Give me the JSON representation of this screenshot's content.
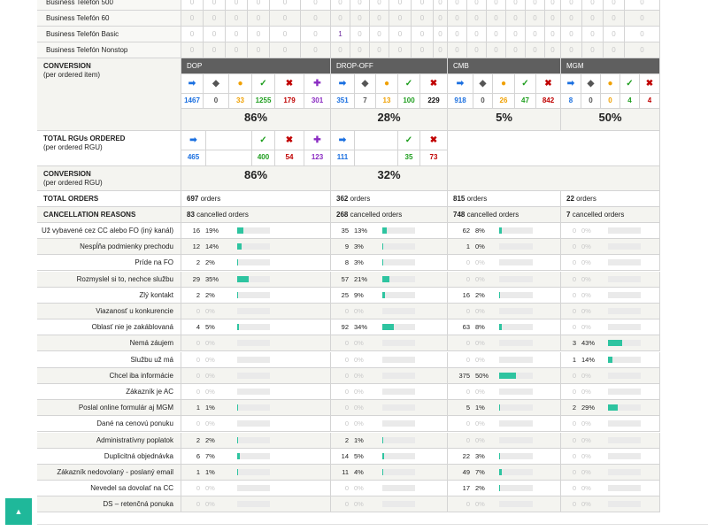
{
  "product_rows": [
    {
      "type": "tel",
      "name": "Business Telefón 500",
      "vals": [
        "0",
        "0",
        "0",
        "0",
        "0",
        "0",
        "0",
        "0",
        "0",
        "0",
        "0",
        "0",
        "0",
        "0",
        "0",
        "0",
        "0",
        "0",
        "0",
        "0",
        "0",
        "0"
      ]
    },
    {
      "type": "tel",
      "name": "Business Telefón 60",
      "vals": [
        "0",
        "0",
        "0",
        "0",
        "0",
        "0",
        "0",
        "0",
        "0",
        "0",
        "0",
        "0",
        "0",
        "0",
        "0",
        "0",
        "0",
        "0",
        "0",
        "0",
        "0",
        "0"
      ]
    },
    {
      "type": "tel",
      "name": "Business Telefón Basic",
      "vals": [
        "0",
        "0",
        "0",
        "0",
        "0",
        "0",
        "1",
        "0",
        "0",
        "0",
        "0",
        "0",
        "0",
        "0",
        "0",
        "0",
        "0",
        "0",
        "0",
        "0",
        "0",
        "0"
      ]
    },
    {
      "type": "tel",
      "name": "Business Telefón Nonstop",
      "vals": [
        "0",
        "0",
        "0",
        "0",
        "0",
        "0",
        "0",
        "0",
        "0",
        "0",
        "0",
        "0",
        "0",
        "0",
        "0",
        "0",
        "0",
        "0",
        "0",
        "0",
        "0",
        "0"
      ]
    }
  ],
  "conversion_item": {
    "label": "CONVERSION",
    "sub": "(per ordered item)",
    "groups": [
      {
        "name": "DOP",
        "icons": [
          "➡",
          "◆",
          "●",
          "✓",
          "✖",
          "✚"
        ],
        "values": [
          "1467",
          "0",
          "33",
          "1255",
          "179",
          "301"
        ],
        "pct": "86%"
      },
      {
        "name": "DROP-OFF",
        "icons": [
          "➡",
          "◆",
          "●",
          "✓",
          "✖"
        ],
        "values": [
          "351",
          "7",
          "13",
          "100",
          "229"
        ],
        "pct": "28%"
      },
      {
        "name": "CMB",
        "icons": [
          "➡",
          "◆",
          "●",
          "✓",
          "✖"
        ],
        "values": [
          "918",
          "0",
          "26",
          "47",
          "842"
        ],
        "pct": "5%"
      },
      {
        "name": "MGM",
        "icons": [
          "➡",
          "◆",
          "●",
          "✓",
          "✖"
        ],
        "values": [
          "8",
          "0",
          "0",
          "4",
          "4"
        ],
        "pct": "50%"
      }
    ]
  },
  "total_rgus": {
    "label": "TOTAL RGUs ORDERED",
    "sub": "(per ordered RGU)",
    "dop": {
      "icons": [
        "➡",
        "",
        "",
        "✓",
        "✖",
        "✚"
      ],
      "values": [
        "465",
        "",
        "",
        "400",
        "54",
        "123"
      ]
    },
    "dropoff": {
      "icons": [
        "➡",
        "",
        "✓",
        "✖"
      ],
      "values": [
        "111",
        "",
        "35",
        "73"
      ]
    }
  },
  "conversion_rgu": {
    "label": "CONVERSION",
    "sub": "(per ordered RGU)",
    "dop_pct": "86%",
    "dropoff_pct": "32%"
  },
  "total_orders": {
    "label": "TOTAL ORDERS",
    "values": [
      {
        "n": "697",
        "t": "orders"
      },
      {
        "n": "362",
        "t": "orders"
      },
      {
        "n": "815",
        "t": "orders"
      },
      {
        "n": "22",
        "t": "orders"
      }
    ]
  },
  "cancellation": {
    "label": "CANCELLATION REASONS",
    "values": [
      {
        "n": "83",
        "t": "cancelled orders"
      },
      {
        "n": "268",
        "t": "cancelled orders"
      },
      {
        "n": "748",
        "t": "cancelled orders"
      },
      {
        "n": "7",
        "t": "cancelled orders"
      }
    ]
  },
  "reasons": [
    {
      "label": "Už vybavené cez CC alebo FO (iný kanál)",
      "g": [
        [
          "16",
          "19%",
          19
        ],
        [
          "35",
          "13%",
          13
        ],
        [
          "62",
          "8%",
          8
        ],
        [
          "0",
          "0%",
          0
        ]
      ]
    },
    {
      "label": "Nespĺňa podmienky prechodu",
      "g": [
        [
          "12",
          "14%",
          14
        ],
        [
          "9",
          "3%",
          3
        ],
        [
          "1",
          "0%",
          0
        ],
        [
          "0",
          "0%",
          0
        ]
      ]
    },
    {
      "label": "Príde na FO",
      "g": [
        [
          "2",
          "2%",
          2
        ],
        [
          "8",
          "3%",
          3
        ],
        [
          "0",
          "0%",
          0
        ],
        [
          "0",
          "0%",
          0
        ]
      ]
    },
    {
      "label": "Rozmyslel si to, nechce službu",
      "g": [
        [
          "29",
          "35%",
          35
        ],
        [
          "57",
          "21%",
          21
        ],
        [
          "0",
          "0%",
          0
        ],
        [
          "0",
          "0%",
          0
        ]
      ]
    },
    {
      "label": "Zlý kontakt",
      "g": [
        [
          "2",
          "2%",
          2
        ],
        [
          "25",
          "9%",
          9
        ],
        [
          "16",
          "2%",
          2
        ],
        [
          "0",
          "0%",
          0
        ]
      ]
    },
    {
      "label": "Viazanosť u konkurencie",
      "g": [
        [
          "0",
          "0%",
          0
        ],
        [
          "0",
          "0%",
          0
        ],
        [
          "0",
          "0%",
          0
        ],
        [
          "0",
          "0%",
          0
        ]
      ]
    },
    {
      "label": "Oblasť nie je zakáblovaná",
      "g": [
        [
          "4",
          "5%",
          5
        ],
        [
          "92",
          "34%",
          34
        ],
        [
          "63",
          "8%",
          8
        ],
        [
          "0",
          "0%",
          0
        ]
      ]
    },
    {
      "label": "Nemá záujem",
      "g": [
        [
          "0",
          "0%",
          0
        ],
        [
          "0",
          "0%",
          0
        ],
        [
          "0",
          "0%",
          0
        ],
        [
          "3",
          "43%",
          43
        ]
      ]
    },
    {
      "label": "Službu už má",
      "g": [
        [
          "0",
          "0%",
          0
        ],
        [
          "0",
          "0%",
          0
        ],
        [
          "0",
          "0%",
          0
        ],
        [
          "1",
          "14%",
          14
        ]
      ]
    },
    {
      "label": "Chcel iba informácie",
      "g": [
        [
          "0",
          "0%",
          0
        ],
        [
          "0",
          "0%",
          0
        ],
        [
          "375",
          "50%",
          50
        ],
        [
          "0",
          "0%",
          0
        ]
      ]
    },
    {
      "label": "Zákazník je AC",
      "g": [
        [
          "0",
          "0%",
          0
        ],
        [
          "0",
          "0%",
          0
        ],
        [
          "0",
          "0%",
          0
        ],
        [
          "0",
          "0%",
          0
        ]
      ]
    },
    {
      "label": "Poslal online formulár aj MGM",
      "g": [
        [
          "1",
          "1%",
          1
        ],
        [
          "0",
          "0%",
          0
        ],
        [
          "5",
          "1%",
          1
        ],
        [
          "2",
          "29%",
          29
        ]
      ]
    },
    {
      "label": "Dané na cenovú ponuku",
      "g": [
        [
          "0",
          "0%",
          0
        ],
        [
          "0",
          "0%",
          0
        ],
        [
          "0",
          "0%",
          0
        ],
        [
          "0",
          "0%",
          0
        ]
      ]
    },
    {
      "label": "Administratívny poplatok",
      "g": [
        [
          "2",
          "2%",
          2
        ],
        [
          "2",
          "1%",
          1
        ],
        [
          "0",
          "0%",
          0
        ],
        [
          "0",
          "0%",
          0
        ]
      ]
    },
    {
      "label": "Duplicitná objednávka",
      "g": [
        [
          "6",
          "7%",
          7
        ],
        [
          "14",
          "5%",
          5
        ],
        [
          "22",
          "3%",
          3
        ],
        [
          "0",
          "0%",
          0
        ]
      ]
    },
    {
      "label": "Zákazník nedovolaný - poslaný email",
      "g": [
        [
          "1",
          "1%",
          1
        ],
        [
          "11",
          "4%",
          4
        ],
        [
          "49",
          "7%",
          7
        ],
        [
          "0",
          "0%",
          0
        ]
      ]
    },
    {
      "label": "Nevedel sa dovolať na CC",
      "g": [
        [
          "0",
          "0%",
          0
        ],
        [
          "0",
          "0%",
          0
        ],
        [
          "17",
          "2%",
          2
        ],
        [
          "0",
          "0%",
          0
        ]
      ]
    },
    {
      "label": "DS – retenčná ponuka",
      "g": [
        [
          "0",
          "0%",
          0
        ],
        [
          "0",
          "0%",
          0
        ],
        [
          "0",
          "0%",
          0
        ],
        [
          "0",
          "0%",
          0
        ]
      ]
    }
  ],
  "scroll_top": {
    "label": "▲"
  },
  "colors": {
    "bar_fill": "#2ec4a0",
    "tel_bg": "#c6efb4",
    "header_bg": "#5f5f5f",
    "scroll_btn": "#1fb89a"
  }
}
